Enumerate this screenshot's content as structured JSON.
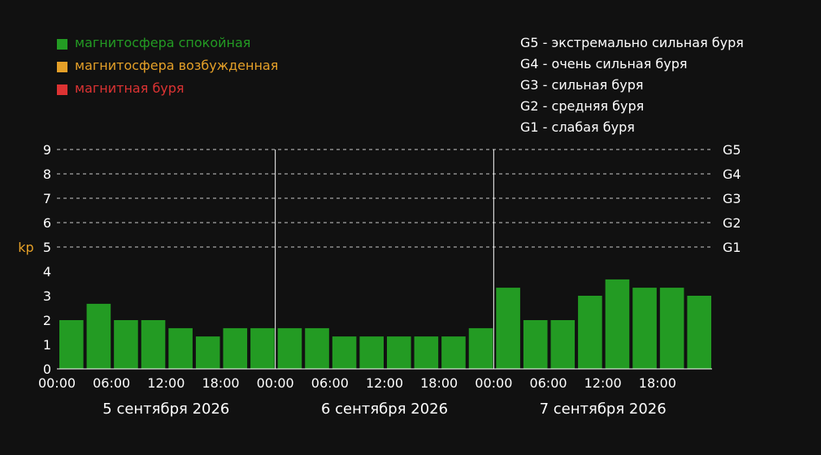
{
  "colors": {
    "background": "#111111",
    "calm": "#239b23",
    "excited": "#e5a028",
    "storm": "#dd3333",
    "axis_text": "#ffffff",
    "ylabel": "#e5a028",
    "grid": "#cccccc"
  },
  "legend": {
    "items": [
      {
        "label": "магнитосфера спокойная",
        "color": "#239b23"
      },
      {
        "label": "магнитосфера возбужденная",
        "color": "#e5a028"
      },
      {
        "label": "магнитная буря",
        "color": "#dd3333"
      }
    ]
  },
  "storm_scale": [
    {
      "code": "G5",
      "sep": " - ",
      "label": "экстремально сильная буря"
    },
    {
      "code": "G4",
      "sep": " - ",
      "label": "очень сильная буря"
    },
    {
      "code": "G3",
      "sep": " - ",
      "label": "сильная буря"
    },
    {
      "code": "G2",
      "sep": " - ",
      "label": "средняя буря"
    },
    {
      "code": "G1",
      "sep": " - ",
      "label": "слабая буря"
    }
  ],
  "chart_data": {
    "type": "bar",
    "title": "",
    "xlabel": "",
    "ylabel": "kp",
    "ylim": [
      0,
      9
    ],
    "yticks": [
      "0",
      "1",
      "2",
      "3",
      "4",
      "5",
      "6",
      "7",
      "8",
      "9"
    ],
    "grid_lines": [
      5,
      6,
      7,
      8,
      9
    ],
    "grid_style": "dashed",
    "right_axis_labels": [
      {
        "value": 9,
        "label": "G5"
      },
      {
        "value": 8,
        "label": "G4"
      },
      {
        "value": 7,
        "label": "G3"
      },
      {
        "value": 6,
        "label": "G2"
      },
      {
        "value": 5,
        "label": "G1"
      }
    ],
    "days": [
      {
        "label": "5 сентября 2026",
        "ticks": [
          "00:00",
          "06:00",
          "12:00",
          "18:00"
        ],
        "values": [
          2.0,
          2.67,
          2.0,
          2.0,
          1.67,
          1.33,
          1.67,
          1.67
        ]
      },
      {
        "label": "6 сентября 2026",
        "ticks": [
          "00:00",
          "06:00",
          "12:00",
          "18:00"
        ],
        "values": [
          1.67,
          1.67,
          1.33,
          1.33,
          1.33,
          1.33,
          1.33,
          1.67
        ]
      },
      {
        "label": "7 сентября 2026",
        "ticks": [
          "00:00",
          "06:00",
          "12:00",
          "18:00"
        ],
        "values": [
          3.33,
          2.0,
          2.0,
          3.0,
          3.67,
          3.33,
          3.33,
          3.0
        ]
      }
    ],
    "bar_color": "#239b23"
  }
}
